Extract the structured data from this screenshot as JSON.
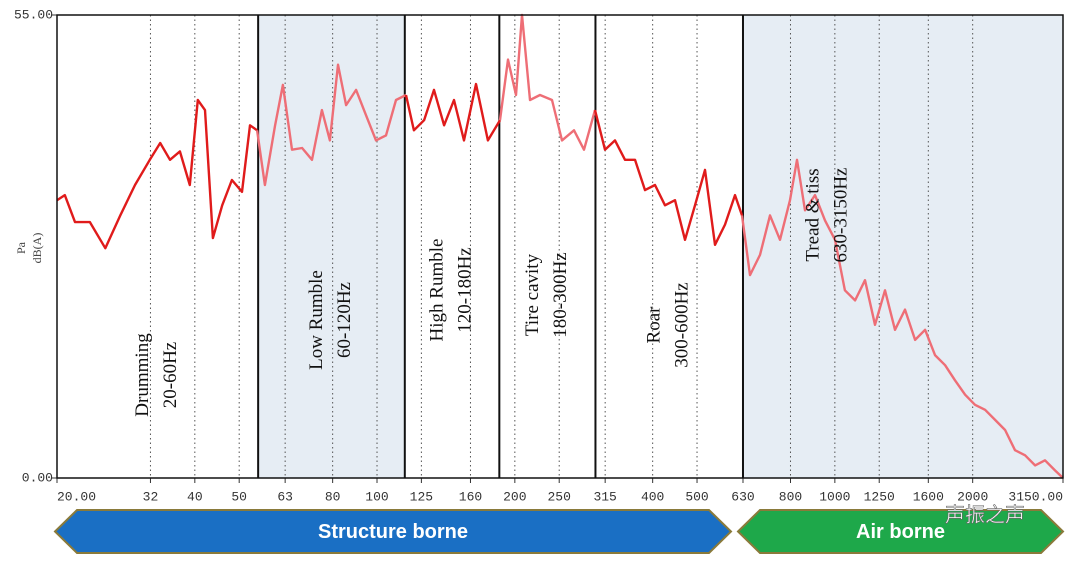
{
  "chart_data": {
    "type": "line",
    "xscale": "log",
    "xlim": [
      20,
      3150
    ],
    "ylim": [
      0,
      55
    ],
    "xticks": [
      {
        "value": 20,
        "label": "20.00"
      },
      32,
      40,
      50,
      63,
      80,
      100,
      125,
      160,
      200,
      250,
      315,
      400,
      500,
      630,
      800,
      1000,
      1250,
      1600,
      2000,
      {
        "value": 3150,
        "label": "3150.00"
      }
    ],
    "yticks": [
      {
        "value": 0,
        "label": "0.00"
      },
      {
        "value": 55,
        "label": "55.00"
      }
    ],
    "ylabel": [
      "Pa",
      "dB(A)"
    ],
    "grid": true,
    "band_color": "#e6edf4",
    "bands": [
      {
        "lines": [
          "Drumming",
          "20-60Hz"
        ],
        "x": [
          20,
          55
        ],
        "shaded": false
      },
      {
        "lines": [
          "Low Rumble",
          "60-120Hz"
        ],
        "x": [
          55,
          115
        ],
        "shaded": true
      },
      {
        "lines": [
          "High Rumble",
          "120-180Hz"
        ],
        "x": [
          115,
          185
        ],
        "shaded": false
      },
      {
        "lines": [
          "Tire cavity",
          "180-300Hz"
        ],
        "x": [
          185,
          300
        ],
        "shaded": false
      },
      {
        "lines": [
          "Roar",
          "300-600Hz"
        ],
        "x": [
          300,
          630
        ],
        "shaded": false
      },
      {
        "lines": [
          "Tread & tiss",
          "630-3150Hz"
        ],
        "x": [
          630,
          3150
        ],
        "shaded": true
      }
    ],
    "series": [
      {
        "color": "#e01b1b",
        "x": [
          20,
          20.8,
          21.9,
          23.6,
          25.5,
          27.5,
          29.6,
          31.9,
          33.6,
          35.3,
          37.1,
          39.0,
          40.6,
          42.1,
          43.8,
          45.9,
          48.2,
          50.7,
          52.8,
          54.7
        ],
        "values": [
          33.0,
          33.6,
          30.4,
          30.4,
          27.3,
          31.2,
          34.8,
          37.8,
          39.8,
          37.8,
          38.8,
          34.8,
          44.9,
          43.7,
          28.5,
          32.4,
          35.4,
          34.0,
          41.9,
          41.3
        ]
      },
      {
        "color": "#ee6e76",
        "x": [
          54.7,
          56.9,
          59.9,
          62.3,
          65.2,
          68.6,
          72.1,
          75.8,
          78.9,
          82.2,
          85.6,
          90.0,
          94.6,
          99.5,
          104.6,
          110.0,
          115.7
        ],
        "values": [
          41.3,
          34.8,
          41.9,
          46.7,
          39.0,
          39.2,
          37.8,
          43.7,
          40.1,
          49.1,
          44.3,
          46.1,
          43.1,
          40.1,
          40.7,
          44.9,
          45.5
        ]
      },
      {
        "color": "#e01b1b",
        "x": [
          115.7,
          120.4,
          126.7,
          133.2,
          140.1,
          147.3,
          154.9,
          164.5,
          174.7,
          185.6
        ],
        "values": [
          45.5,
          41.3,
          42.5,
          46.1,
          41.9,
          44.9,
          40.1,
          46.8,
          40.1,
          42.5
        ]
      },
      {
        "color": "#ee6e76",
        "x": [
          185.6,
          193.2,
          201.2,
          207.3,
          215.8,
          227.0,
          241.1,
          253.5,
          269.3,
          283.2,
          299.3
        ],
        "values": [
          42.5,
          49.7,
          45.5,
          55.0,
          44.9,
          45.5,
          44.9,
          40.1,
          41.3,
          39.0,
          43.7
        ]
      },
      {
        "color": "#e01b1b",
        "x": [
          299.3,
          314.7,
          331.0,
          348.0,
          366.0,
          384.9,
          404.7,
          425.6,
          447.6,
          470.6,
          495.0,
          520.4,
          547.3,
          575.5,
          605.3,
          627
        ],
        "values": [
          43.7,
          39.0,
          40.1,
          37.8,
          37.8,
          34.2,
          34.8,
          32.4,
          33.0,
          28.3,
          32.4,
          36.6,
          27.7,
          30.1,
          33.6,
          31.2
        ]
      },
      {
        "color": "#ee6e76",
        "x": [
          627,
          652.6,
          686.3,
          721.7,
          758.9,
          798,
          826.6,
          860.4,
          904.8,
          951.5,
          1000.7,
          1052,
          1107,
          1164,
          1224,
          1287,
          1353,
          1423,
          1497,
          1574,
          1655,
          1741,
          1830,
          1925,
          2024,
          2129,
          2239,
          2354,
          2475,
          2603,
          2737,
          2878,
          3026,
          3150
        ],
        "values": [
          31.2,
          24.1,
          26.5,
          31.2,
          28.3,
          33.0,
          37.8,
          31.8,
          33.6,
          30.6,
          28.3,
          22.3,
          21.1,
          23.5,
          18.2,
          22.3,
          17.6,
          20.0,
          16.4,
          17.6,
          14.6,
          13.4,
          11.6,
          9.9,
          8.7,
          8.1,
          6.9,
          5.7,
          3.3,
          2.7,
          1.5,
          2.1,
          0.9,
          0.0
        ]
      }
    ],
    "arrows": [
      {
        "text": "Structure borne",
        "color": "#1a6fc4"
      },
      {
        "text": "Air borne",
        "color": "#1ea84a"
      }
    ],
    "watermark": "声振之声"
  }
}
